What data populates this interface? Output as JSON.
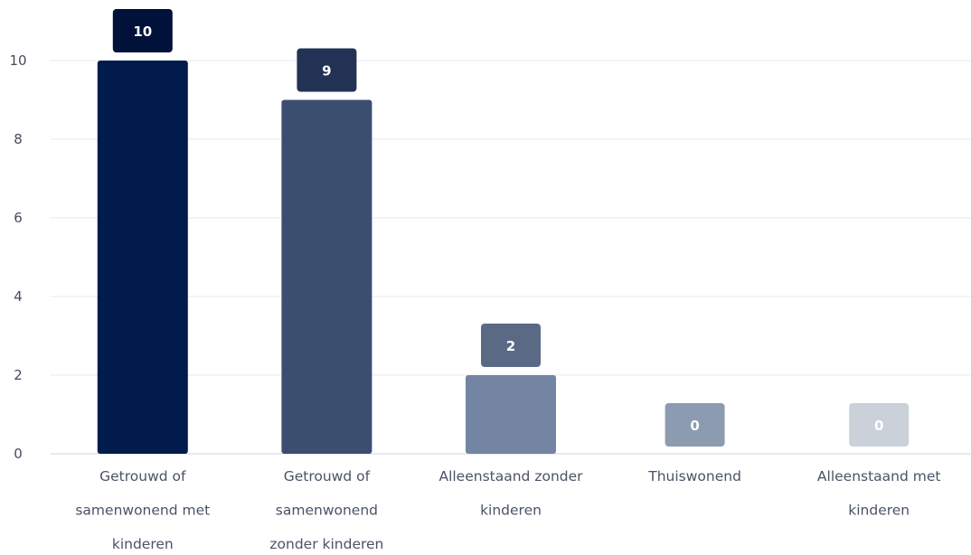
{
  "chart_data": {
    "type": "bar",
    "title": "",
    "xlabel": "",
    "ylabel": "",
    "categories": [
      [
        "Getrouwd of",
        "samenwonend met",
        "kinderen"
      ],
      [
        "Getrouwd of",
        "samenwonend",
        "zonder kinderen"
      ],
      [
        "Alleenstaand zonder",
        "kinderen"
      ],
      [
        "Thuiswonend"
      ],
      [
        "Alleenstaand met",
        "kinderen"
      ]
    ],
    "values": [
      10,
      9,
      2,
      0,
      0
    ],
    "ylim": [
      0,
      11
    ],
    "yticks": [
      0,
      2,
      4,
      6,
      8,
      10
    ],
    "grid": true,
    "legend": "none",
    "bar_colors": [
      "#001b4c",
      "#3c4e70",
      "#7385a3",
      "#95a1b5",
      "#cdd3da"
    ],
    "label_colors": [
      "#00113a",
      "#213254",
      "#5a6a85",
      "#8d9bb1",
      "#cbd1d8"
    ]
  }
}
